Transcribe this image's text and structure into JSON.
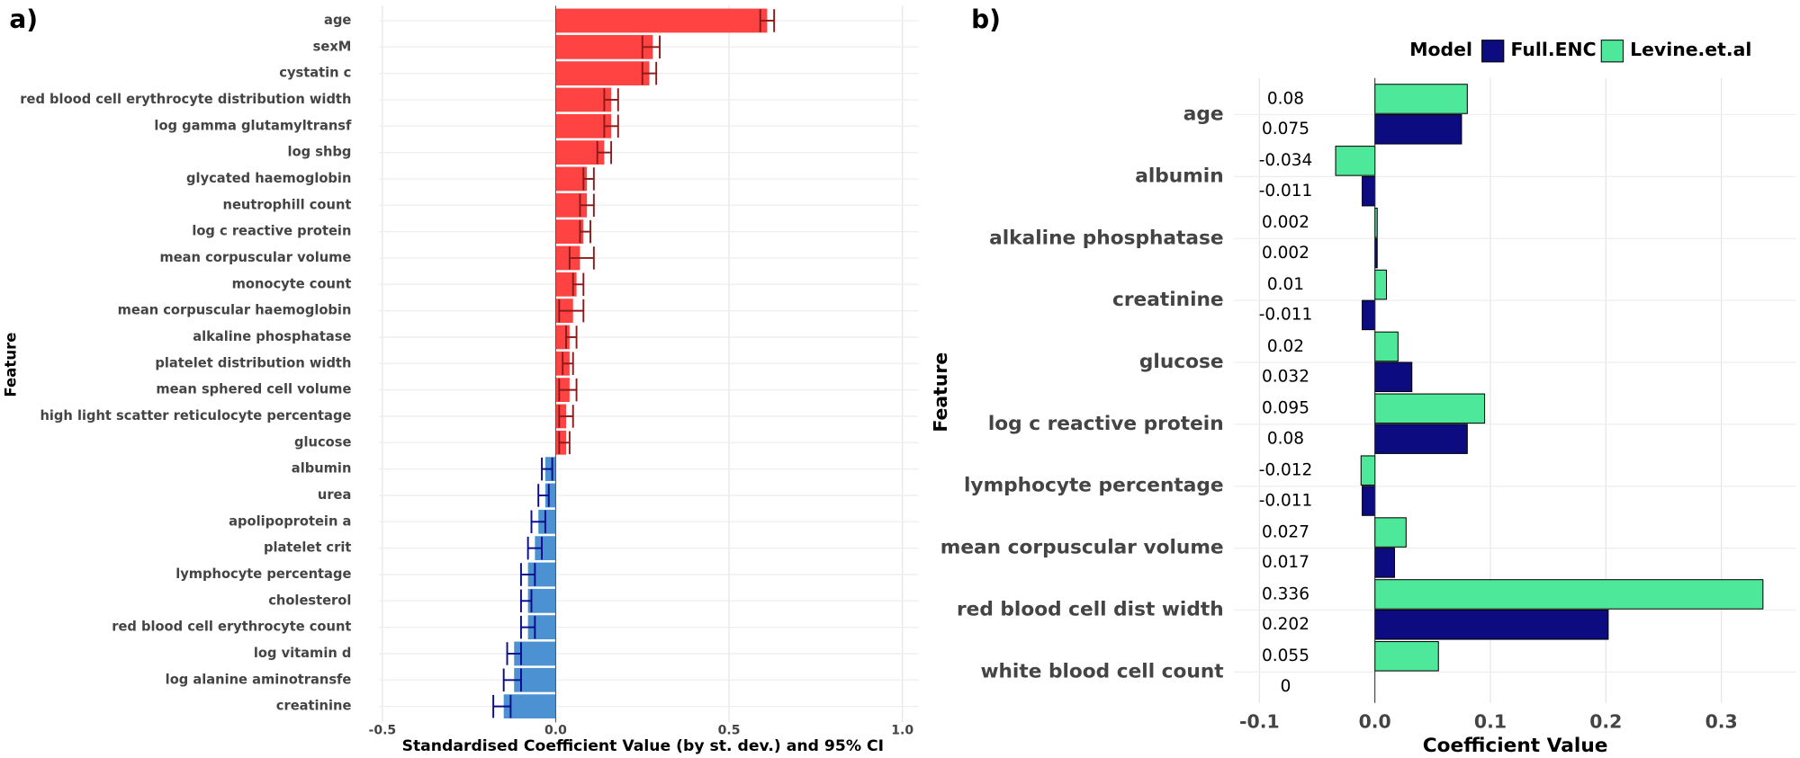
{
  "chart_data": [
    {
      "type": "hbar_ci",
      "panel_label": "a)",
      "x_label": "Standardised Coefficient Value (by st. dev.) and 95% CI",
      "y_label": "Feature",
      "categories": [
        "age",
        "sexM",
        "cystatin c",
        "red blood cell erythrocyte distribution width",
        "log gamma glutamyltransf",
        "log shbg",
        "glycated haemoglobin",
        "neutrophill count",
        "log c reactive protein",
        "mean corpuscular volume",
        "monocyte count",
        "mean corpuscular haemoglobin",
        "alkaline phosphatase",
        "platelet distribution width",
        "mean sphered cell volume",
        "high light scatter reticulocyte percentage",
        "glucose",
        "albumin",
        "urea",
        "apolipoprotein a",
        "platelet crit",
        "lymphocyte percentage",
        "cholesterol",
        "red blood cell erythrocyte count",
        "log vitamin d",
        "log alanine aminotransfe",
        "creatinine"
      ],
      "values": [
        0.61,
        0.28,
        0.27,
        0.16,
        0.16,
        0.14,
        0.09,
        0.09,
        0.08,
        0.07,
        0.06,
        0.05,
        0.04,
        0.04,
        0.04,
        0.03,
        0.03,
        -0.03,
        -0.03,
        -0.05,
        -0.06,
        -0.08,
        -0.08,
        -0.08,
        -0.12,
        -0.12,
        -0.15
      ],
      "ci_lower": [
        0.59,
        0.25,
        0.25,
        0.14,
        0.14,
        0.12,
        0.08,
        0.07,
        0.07,
        0.04,
        0.05,
        0.01,
        0.03,
        0.02,
        0.01,
        0.01,
        0.01,
        -0.04,
        -0.05,
        -0.07,
        -0.08,
        -0.1,
        -0.1,
        -0.1,
        -0.14,
        -0.15,
        -0.18
      ],
      "ci_upper": [
        0.63,
        0.3,
        0.29,
        0.18,
        0.18,
        0.16,
        0.11,
        0.11,
        0.1,
        0.11,
        0.08,
        0.08,
        0.06,
        0.05,
        0.06,
        0.05,
        0.04,
        -0.01,
        -0.02,
        -0.03,
        -0.04,
        -0.06,
        -0.07,
        -0.06,
        -0.1,
        -0.1,
        -0.13
      ],
      "colors": {
        "positive": "#ff4343",
        "negative": "#4c92d2"
      },
      "error_colors": {
        "positive": "#8b1a1a",
        "negative": "#0a0a8c"
      },
      "xlim": [
        -0.51,
        1.046
      ],
      "xticks": [
        -0.5,
        {
          "value": 0,
          "label": "0.0"
        },
        0.5,
        {
          "value": 1,
          "label": "1.0"
        }
      ],
      "grid": true
    },
    {
      "type": "grouped_hbar",
      "panel_label": "b)",
      "x_label": "Coefficient Value",
      "y_label": "Feature",
      "legend_title": "Model",
      "legend_position": "top",
      "categories": [
        "age",
        "albumin",
        "alkaline phosphatase",
        "creatinine",
        "glucose",
        "log c reactive protein",
        "lymphocyte percentage",
        "mean corpuscular volume",
        "red blood cell dist width",
        "white blood cell count"
      ],
      "series": [
        {
          "name": "Full.ENC",
          "color": "#0c0c80",
          "values": [
            0.075,
            -0.011,
            0.002,
            -0.011,
            0.032,
            0.08,
            -0.011,
            0.017,
            0.202,
            0
          ]
        },
        {
          "name": "Levine.et.al",
          "color": "#4ee89a",
          "values": [
            0.08,
            -0.034,
            0.002,
            0.01,
            0.02,
            0.095,
            -0.012,
            0.027,
            0.336,
            0.055
          ]
        }
      ],
      "xlim": [
        -0.122,
        0.365
      ],
      "xticks": [
        -0.1,
        {
          "value": 0,
          "label": "0.0"
        },
        0.1,
        0.2,
        0.3
      ],
      "grid": true
    }
  ]
}
